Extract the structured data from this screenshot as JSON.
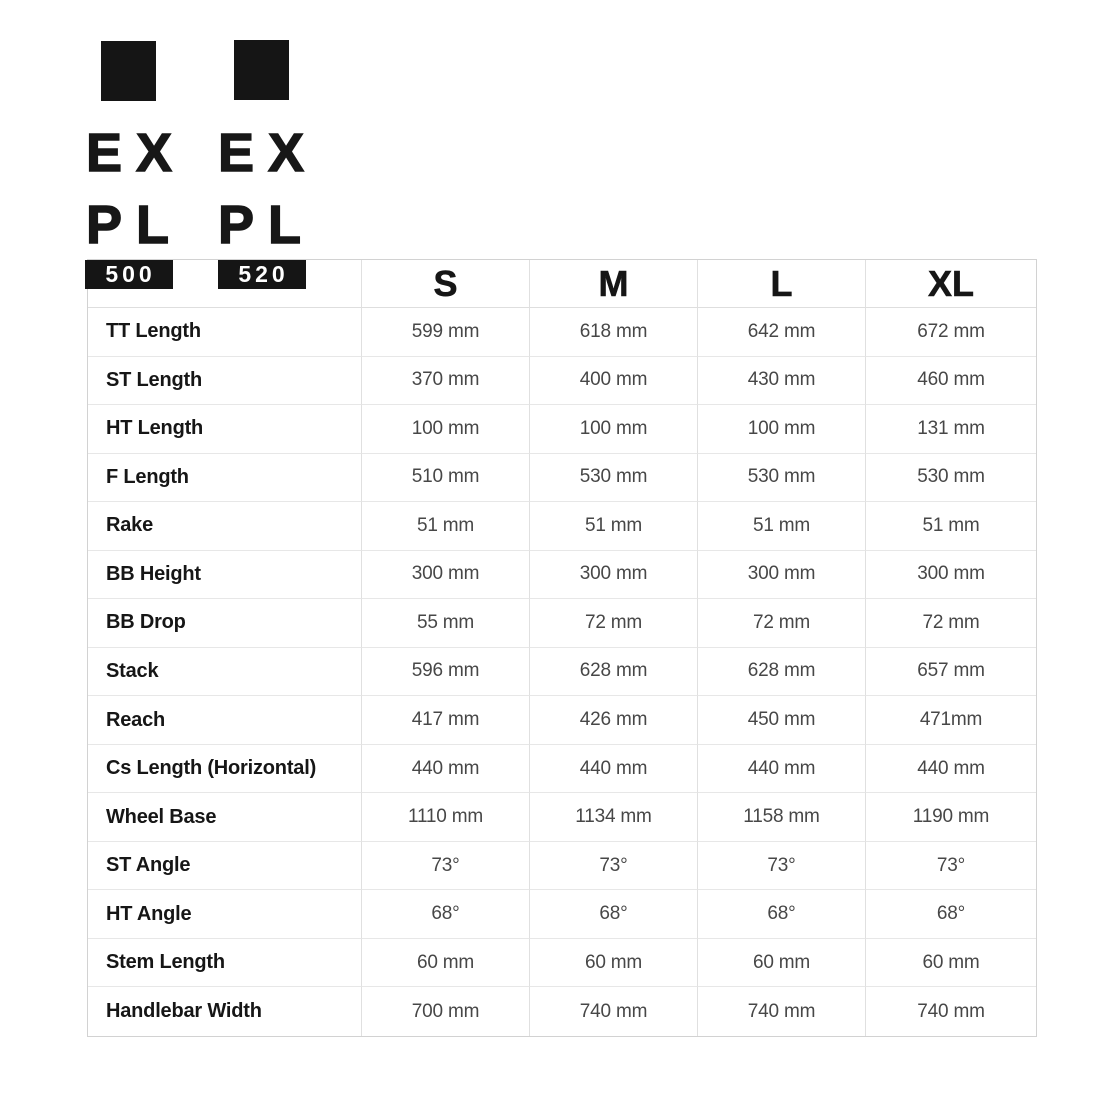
{
  "logos": [
    {
      "id": "500",
      "line1": "EX",
      "line2": "PL",
      "badge": "500"
    },
    {
      "id": "520",
      "line1": "EX",
      "line2": "PL",
      "badge": "520"
    }
  ],
  "colors": {
    "brand_black": "#151515",
    "value_text": "#474747",
    "label_text": "#161616",
    "grid_border": "#e0e0e0",
    "outer_border": "#d2d2d2",
    "badge_text": "#ffffff"
  },
  "table": {
    "size_headers": [
      "S",
      "M",
      "L",
      "XL"
    ],
    "rows": [
      {
        "label": "TT Length",
        "values": [
          "599 mm",
          "618 mm",
          "642 mm",
          "672 mm"
        ]
      },
      {
        "label": "ST Length",
        "values": [
          "370 mm",
          "400 mm",
          "430 mm",
          "460 mm"
        ]
      },
      {
        "label": "HT Length",
        "values": [
          "100 mm",
          "100 mm",
          "100 mm",
          "131 mm"
        ]
      },
      {
        "label": "F Length",
        "values": [
          "510 mm",
          "530 mm",
          "530 mm",
          "530 mm"
        ]
      },
      {
        "label": "Rake",
        "values": [
          "51 mm",
          "51 mm",
          "51 mm",
          "51 mm"
        ]
      },
      {
        "label": "BB Height",
        "values": [
          "300 mm",
          "300 mm",
          "300 mm",
          "300 mm"
        ]
      },
      {
        "label": "BB Drop",
        "values": [
          "55 mm",
          "72 mm",
          "72 mm",
          "72 mm"
        ]
      },
      {
        "label": "Stack",
        "values": [
          "596 mm",
          "628 mm",
          "628 mm",
          "657 mm"
        ]
      },
      {
        "label": "Reach",
        "values": [
          "417 mm",
          "426 mm",
          "450 mm",
          "471mm"
        ]
      },
      {
        "label": "Cs Length (Horizontal)",
        "values": [
          "440 mm",
          "440 mm",
          "440 mm",
          "440 mm"
        ]
      },
      {
        "label": "Wheel Base",
        "values": [
          "1110 mm",
          "1134 mm",
          "1158 mm",
          "1190 mm"
        ]
      },
      {
        "label": "ST Angle",
        "values": [
          "73°",
          "73°",
          "73°",
          "73°"
        ]
      },
      {
        "label": "HT Angle",
        "values": [
          "68°",
          "68°",
          "68°",
          "68°"
        ]
      },
      {
        "label": "Stem Length",
        "values": [
          "60 mm",
          "60 mm",
          "60 mm",
          "60 mm"
        ]
      },
      {
        "label": "Handlebar Width",
        "values": [
          "700 mm",
          "740 mm",
          "740 mm",
          "740 mm"
        ]
      }
    ]
  }
}
